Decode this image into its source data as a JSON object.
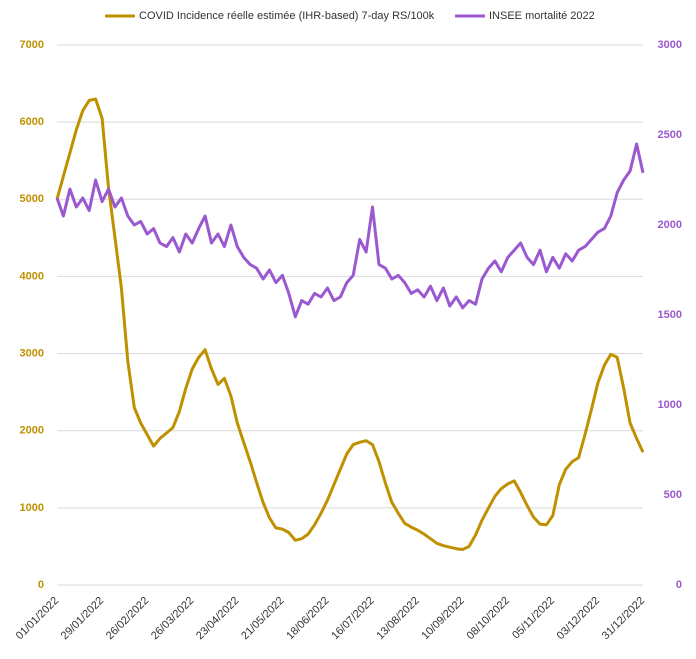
{
  "chart_data": {
    "type": "line",
    "categories": [
      "01/01/2022",
      null,
      null,
      null,
      null,
      null,
      null,
      "29/01/2022",
      null,
      null,
      null,
      null,
      null,
      null,
      "26/02/2022",
      null,
      null,
      null,
      null,
      null,
      null,
      "26/03/2022",
      null,
      null,
      null,
      null,
      null,
      null,
      "23/04/2022",
      null,
      null,
      null,
      null,
      null,
      null,
      "21/05/2022",
      null,
      null,
      null,
      null,
      null,
      null,
      "18/06/2022",
      null,
      null,
      null,
      null,
      null,
      null,
      "16/07/2022",
      null,
      null,
      null,
      null,
      null,
      null,
      "13/08/2022",
      null,
      null,
      null,
      null,
      null,
      null,
      "10/09/2022",
      null,
      null,
      null,
      null,
      null,
      null,
      "08/10/2022",
      null,
      null,
      null,
      null,
      null,
      null,
      "05/11/2022",
      null,
      null,
      null,
      null,
      null,
      null,
      "03/12/2022",
      null,
      null,
      null,
      null,
      null,
      null,
      "31/12/2022"
    ],
    "series": [
      {
        "name": "COVID Incidence réelle estimée (IHR-based) 7-day RS/100k",
        "color": "#bf9000",
        "values": [
          5000,
          5300,
          5600,
          5900,
          6150,
          6280,
          6300,
          6050,
          5150,
          4500,
          3850,
          2900,
          2300,
          2100,
          1950,
          1800,
          1900,
          1970,
          2040,
          2250,
          2550,
          2800,
          2950,
          3050,
          2800,
          2600,
          2680,
          2450,
          2100,
          1850,
          1600,
          1330,
          1070,
          870,
          740,
          725,
          680,
          580,
          600,
          660,
          780,
          930,
          1100,
          1300,
          1500,
          1700,
          1820,
          1850,
          1870,
          1820,
          1600,
          1320,
          1070,
          930,
          800,
          750,
          710,
          660,
          600,
          540,
          510,
          490,
          470,
          460,
          500,
          650,
          840,
          1000,
          1150,
          1250,
          1310,
          1350,
          1200,
          1030,
          880,
          790,
          780,
          900,
          1300,
          1500,
          1600,
          1650,
          1950,
          2280,
          2620,
          2850,
          2990,
          2950,
          2550,
          2100,
          1900,
          1720
        ]
      },
      {
        "name": "INSEE mortalité 2022",
        "color": "#9b59d0",
        "axis": "y2",
        "values": [
          2150,
          2050,
          2200,
          2100,
          2150,
          2080,
          2250,
          2130,
          2200,
          2100,
          2150,
          2050,
          2000,
          2020,
          1950,
          1980,
          1900,
          1880,
          1930,
          1850,
          1950,
          1900,
          1980,
          2050,
          1900,
          1950,
          1880,
          2000,
          1880,
          1820,
          1780,
          1760,
          1700,
          1750,
          1680,
          1720,
          1620,
          1490,
          1580,
          1560,
          1620,
          1600,
          1650,
          1580,
          1600,
          1680,
          1720,
          1920,
          1850,
          2100,
          1780,
          1760,
          1700,
          1720,
          1680,
          1620,
          1640,
          1600,
          1660,
          1580,
          1650,
          1550,
          1600,
          1540,
          1580,
          1560,
          1700,
          1760,
          1800,
          1740,
          1820,
          1860,
          1900,
          1820,
          1780,
          1860,
          1740,
          1820,
          1760,
          1840,
          1800,
          1860,
          1880,
          1920,
          1960,
          1980,
          2050,
          2180,
          2250,
          2300,
          2450,
          2290
        ]
      }
    ],
    "ylim": [
      0,
      7000
    ],
    "yticks": [
      0,
      1000,
      2000,
      3000,
      4000,
      5000,
      6000,
      7000
    ],
    "y2lim": [
      0,
      3000
    ],
    "y2ticks": [
      0,
      500,
      1000,
      1500,
      2000,
      2500,
      3000
    ],
    "grid": true,
    "legend": "top"
  }
}
